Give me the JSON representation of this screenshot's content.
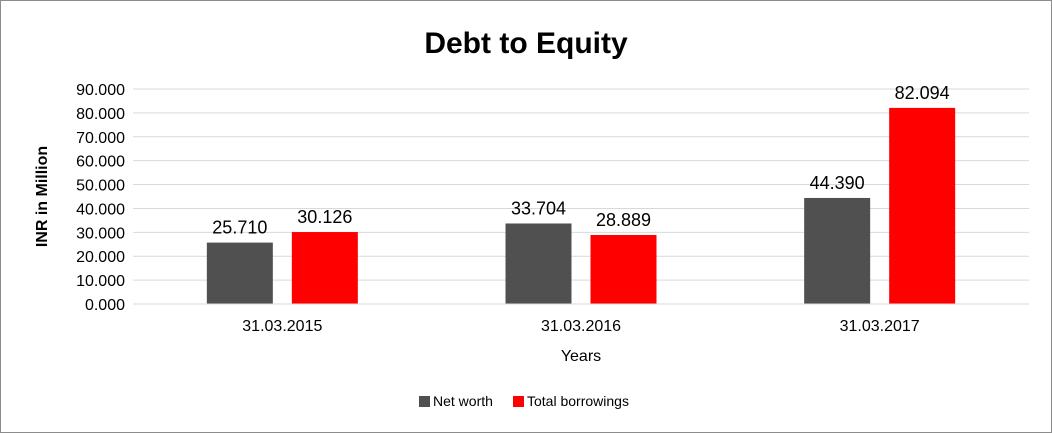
{
  "chart_data": {
    "type": "bar",
    "title": "Debt to Equity",
    "xlabel": "Years",
    "ylabel": "INR in Million",
    "categories": [
      "31.03.2015",
      "31.03.2016",
      "31.03.2017"
    ],
    "series": [
      {
        "name": "Net worth",
        "color": "#505050",
        "values": [
          25.71,
          33.704,
          44.39
        ],
        "labels": [
          "25.710",
          "33.704",
          "44.390"
        ]
      },
      {
        "name": "Total borrowings",
        "color": "#ff0000",
        "values": [
          30.126,
          28.889,
          82.094
        ],
        "labels": [
          "30.126",
          "28.889",
          "82.094"
        ]
      }
    ],
    "ylim": [
      0,
      90
    ],
    "yticks": [
      0,
      10,
      20,
      30,
      40,
      50,
      60,
      70,
      80,
      90
    ],
    "ytick_labels": [
      "0.000",
      "10.000",
      "20.000",
      "30.000",
      "40.000",
      "50.000",
      "60.000",
      "70.000",
      "80.000",
      "90.000"
    ],
    "grid": true,
    "legend_position": "bottom"
  }
}
